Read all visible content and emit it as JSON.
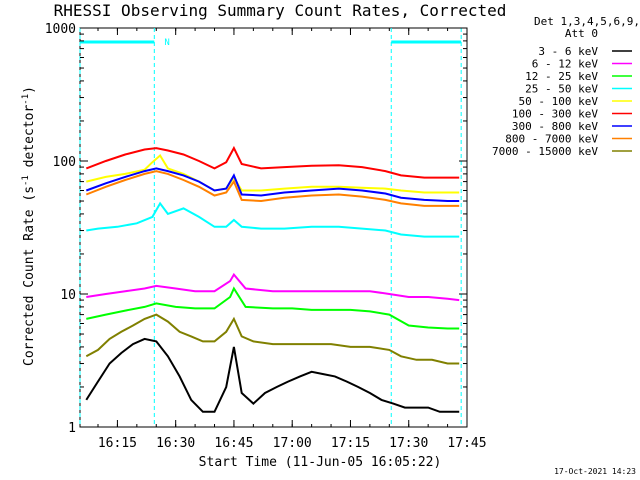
{
  "chart_data": {
    "type": "line",
    "title": "RHESSI Observing Summary Count Rates, Corrected",
    "xlabel": "Start Time (11-Jun-05 16:05:22)",
    "ylabel": "Corrected Count Rate (s⁻¹ detector⁻¹)",
    "ylabel_parts": {
      "pre": "Corrected Count Rate (s",
      "mid": " detector",
      "post": ")",
      "sup": "-1"
    },
    "yscale": "log",
    "ylim": [
      1,
      1000
    ],
    "xlim": [
      "16:05:22",
      "17:45:00"
    ],
    "xticks": [
      "16:15",
      "16:30",
      "16:45",
      "17:00",
      "17:15",
      "17:30",
      "17:45"
    ],
    "yticks": [
      "1",
      "10",
      "100",
      "1000"
    ],
    "legend_header": [
      "Det 1,3,4,5,6,9,",
      "Att 0"
    ],
    "legend_position": "right",
    "timestamp": "17-Oct-2021 14:23",
    "flag_label": "N",
    "night_periods": [
      [
        "16:05:22",
        "16:24:30"
      ],
      [
        "17:25:30",
        "17:43:30"
      ]
    ],
    "series": [
      {
        "name": "3 - 6 keV",
        "color": "#000000",
        "x": [
          "16:07",
          "16:10",
          "16:13",
          "16:16",
          "16:19",
          "16:22",
          "16:25",
          "16:28",
          "16:31",
          "16:34",
          "16:37",
          "16:40",
          "16:43",
          "16:45",
          "16:47",
          "16:50",
          "16:53",
          "16:56",
          "16:59",
          "17:02",
          "17:05",
          "17:08",
          "17:11",
          "17:14",
          "17:17",
          "17:20",
          "17:23",
          "17:26",
          "17:29",
          "17:32",
          "17:35",
          "17:38",
          "17:41",
          "17:43"
        ],
        "y": [
          1.6,
          2.2,
          3.0,
          3.6,
          4.2,
          4.6,
          4.4,
          3.4,
          2.4,
          1.6,
          1.3,
          1.3,
          2.0,
          4.0,
          1.8,
          1.5,
          1.8,
          2.0,
          2.2,
          2.4,
          2.6,
          2.5,
          2.4,
          2.2,
          2.0,
          1.8,
          1.6,
          1.5,
          1.4,
          1.4,
          1.4,
          1.3,
          1.3,
          1.3
        ]
      },
      {
        "name": "6 - 12 keV",
        "color": "#ff00ff",
        "x": [
          "16:07",
          "16:12",
          "16:17",
          "16:22",
          "16:25",
          "16:30",
          "16:35",
          "16:40",
          "16:44",
          "16:45",
          "16:48",
          "16:55",
          "17:00",
          "17:05",
          "17:10",
          "17:15",
          "17:20",
          "17:25",
          "17:30",
          "17:35",
          "17:40",
          "17:43"
        ],
        "y": [
          9.5,
          10.0,
          10.5,
          11.0,
          11.5,
          11.0,
          10.5,
          10.5,
          12.5,
          14.0,
          11.0,
          10.5,
          10.5,
          10.5,
          10.5,
          10.5,
          10.5,
          10.0,
          9.5,
          9.5,
          9.2,
          9.0
        ]
      },
      {
        "name": "12 - 25 keV",
        "color": "#00ff00",
        "x": [
          "16:07",
          "16:12",
          "16:17",
          "16:22",
          "16:25",
          "16:30",
          "16:35",
          "16:40",
          "16:44",
          "16:45",
          "16:48",
          "16:55",
          "17:00",
          "17:05",
          "17:10",
          "17:15",
          "17:20",
          "17:25",
          "17:30",
          "17:35",
          "17:40",
          "17:43"
        ],
        "y": [
          6.5,
          7.0,
          7.5,
          8.0,
          8.5,
          8.0,
          7.8,
          7.8,
          9.5,
          11.0,
          8.0,
          7.8,
          7.8,
          7.6,
          7.6,
          7.6,
          7.4,
          7.0,
          5.8,
          5.6,
          5.5,
          5.5
        ]
      },
      {
        "name": "25 - 50 keV",
        "color": "#00ffff",
        "x": [
          "16:07",
          "16:10",
          "16:15",
          "16:20",
          "16:24",
          "16:26",
          "16:28",
          "16:32",
          "16:36",
          "16:40",
          "16:43",
          "16:45",
          "16:47",
          "16:52",
          "16:58",
          "17:05",
          "17:12",
          "17:18",
          "17:24",
          "17:28",
          "17:34",
          "17:40",
          "17:43"
        ],
        "y": [
          30,
          31,
          32,
          34,
          38,
          48,
          40,
          44,
          38,
          32,
          32,
          36,
          32,
          31,
          31,
          32,
          32,
          31,
          30,
          28,
          27,
          27,
          27
        ]
      },
      {
        "name": "50 - 100 keV",
        "color": "#ffff00",
        "x": [
          "16:07",
          "16:12",
          "16:17",
          "16:22",
          "16:24",
          "16:26",
          "16:28",
          "16:32",
          "16:36",
          "16:40",
          "16:43",
          "16:45",
          "16:47",
          "16:52",
          "16:58",
          "17:05",
          "17:12",
          "17:18",
          "17:24",
          "17:28",
          "17:34",
          "17:40",
          "17:43"
        ],
        "y": [
          70,
          76,
          80,
          86,
          98,
          110,
          88,
          80,
          70,
          60,
          62,
          75,
          60,
          60,
          62,
          64,
          64,
          63,
          62,
          60,
          58,
          58,
          58
        ]
      },
      {
        "name": "100 - 300 keV",
        "color": "#ff0000",
        "x": [
          "16:07",
          "16:12",
          "16:17",
          "16:22",
          "16:25",
          "16:28",
          "16:32",
          "16:36",
          "16:40",
          "16:43",
          "16:45",
          "16:47",
          "16:52",
          "16:58",
          "17:05",
          "17:12",
          "17:18",
          "17:24",
          "17:28",
          "17:34",
          "17:40",
          "17:43"
        ],
        "y": [
          88,
          100,
          112,
          122,
          125,
          120,
          112,
          100,
          88,
          98,
          125,
          95,
          88,
          90,
          92,
          93,
          90,
          84,
          78,
          75,
          75,
          75
        ]
      },
      {
        "name": "300 - 800 keV",
        "color": "#0000ff",
        "x": [
          "16:07",
          "16:12",
          "16:17",
          "16:22",
          "16:25",
          "16:28",
          "16:32",
          "16:36",
          "16:40",
          "16:43",
          "16:45",
          "16:47",
          "16:52",
          "16:58",
          "17:05",
          "17:12",
          "17:18",
          "17:24",
          "17:28",
          "17:34",
          "17:40",
          "17:43"
        ],
        "y": [
          60,
          68,
          76,
          84,
          88,
          84,
          78,
          70,
          60,
          62,
          78,
          56,
          55,
          58,
          60,
          62,
          60,
          57,
          53,
          51,
          50,
          50
        ]
      },
      {
        "name": "800 - 7000 keV",
        "color": "#ff8000",
        "x": [
          "16:07",
          "16:12",
          "16:17",
          "16:22",
          "16:25",
          "16:28",
          "16:32",
          "16:36",
          "16:40",
          "16:43",
          "16:45",
          "16:47",
          "16:52",
          "16:58",
          "17:05",
          "17:12",
          "17:18",
          "17:24",
          "17:28",
          "17:34",
          "17:40",
          "17:43"
        ],
        "y": [
          56,
          64,
          72,
          80,
          84,
          80,
          72,
          64,
          55,
          58,
          70,
          51,
          50,
          53,
          55,
          56,
          54,
          51,
          48,
          46,
          46,
          46
        ]
      },
      {
        "name": "7000 - 15000 keV",
        "color": "#808000",
        "x": [
          "16:07",
          "16:10",
          "16:13",
          "16:16",
          "16:19",
          "16:22",
          "16:25",
          "16:28",
          "16:31",
          "16:34",
          "16:37",
          "16:40",
          "16:43",
          "16:45",
          "16:47",
          "16:50",
          "16:55",
          "17:00",
          "17:05",
          "17:10",
          "17:15",
          "17:20",
          "17:25",
          "17:28",
          "17:32",
          "17:36",
          "17:40",
          "17:43"
        ],
        "y": [
          3.4,
          3.8,
          4.6,
          5.2,
          5.8,
          6.5,
          7.0,
          6.2,
          5.2,
          4.8,
          4.4,
          4.4,
          5.2,
          6.5,
          4.8,
          4.4,
          4.2,
          4.2,
          4.2,
          4.2,
          4.0,
          4.0,
          3.8,
          3.4,
          3.2,
          3.2,
          3.0,
          3.0
        ]
      }
    ]
  }
}
